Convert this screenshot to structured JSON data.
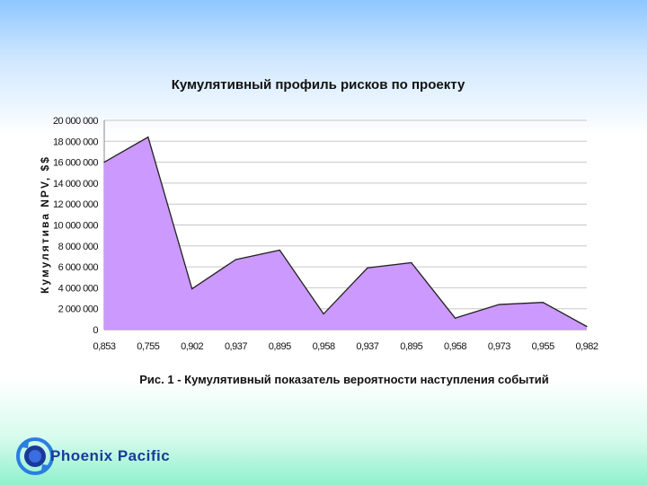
{
  "chart_data": {
    "type": "area",
    "title": "Кумулятивный профиль рисков по проекту",
    "xlabel": "Рис. 1 - Кумулятивный показатель вероятности наступления событий",
    "ylabel": "Кумулятива NPV, $$",
    "categories": [
      "0,853",
      "0,755",
      "0,902",
      "0,937",
      "0,895",
      "0,958",
      "0,937",
      "0,895",
      "0,958",
      "0,973",
      "0,955",
      "0,982"
    ],
    "series": [
      {
        "values": [
          16000000,
          18400000,
          3900000,
          6700000,
          7600000,
          1500000,
          5900000,
          6400000,
          1100000,
          2400000,
          2600000,
          300000
        ]
      }
    ],
    "ylim": [
      0,
      20000000
    ],
    "yticks": [
      "0",
      "2 000 000",
      "4 000 000",
      "6 000 000",
      "8 000 000",
      "10 000 000",
      "12 000 000",
      "14 000 000",
      "16 000 000",
      "18 000 000",
      "20 000 000"
    ],
    "grid": true,
    "legend": "none",
    "colors": {
      "fill": "#cc99ff",
      "stroke": "#222222",
      "grid": "#c8c8c8"
    }
  },
  "logo": {
    "text": "Phoenix Pacific",
    "icon": "globe-arrows-icon"
  }
}
